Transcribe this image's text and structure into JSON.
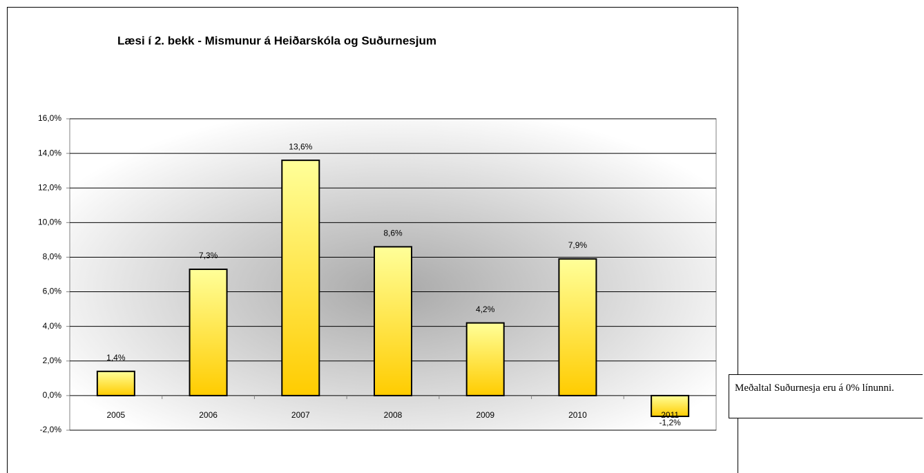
{
  "chart_data": {
    "type": "bar",
    "title": "Læsi í 2. bekk - Mismunur á Heiðarskóla og Suðurnesjum",
    "categories": [
      "2005",
      "2006",
      "2007",
      "2008",
      "2009",
      "2010",
      "2011"
    ],
    "values": [
      1.4,
      7.3,
      13.6,
      8.6,
      4.2,
      7.9,
      -1.2
    ],
    "value_labels": [
      "1,4%",
      "7,3%",
      "13,6%",
      "8,6%",
      "4,2%",
      "7,9%",
      "-1,2%"
    ],
    "color": "#ffd11a",
    "ylim": [
      -2,
      16
    ],
    "yticks": [
      {
        "value": -2,
        "label": "-2,0%"
      },
      {
        "value": 0,
        "label": "0,0%"
      },
      {
        "value": 2,
        "label": "2,0%"
      },
      {
        "value": 4,
        "label": "4,0%"
      },
      {
        "value": 6,
        "label": "6,0%"
      },
      {
        "value": 8,
        "label": "8,0%"
      },
      {
        "value": 10,
        "label": "10,0%"
      },
      {
        "value": 12,
        "label": "12,0%"
      },
      {
        "value": 14,
        "label": "14,0%"
      },
      {
        "value": 16,
        "label": "16,0%"
      }
    ],
    "grid": true,
    "annotation": "Meðaltal Suðurnesja eru á 0% línunni."
  }
}
